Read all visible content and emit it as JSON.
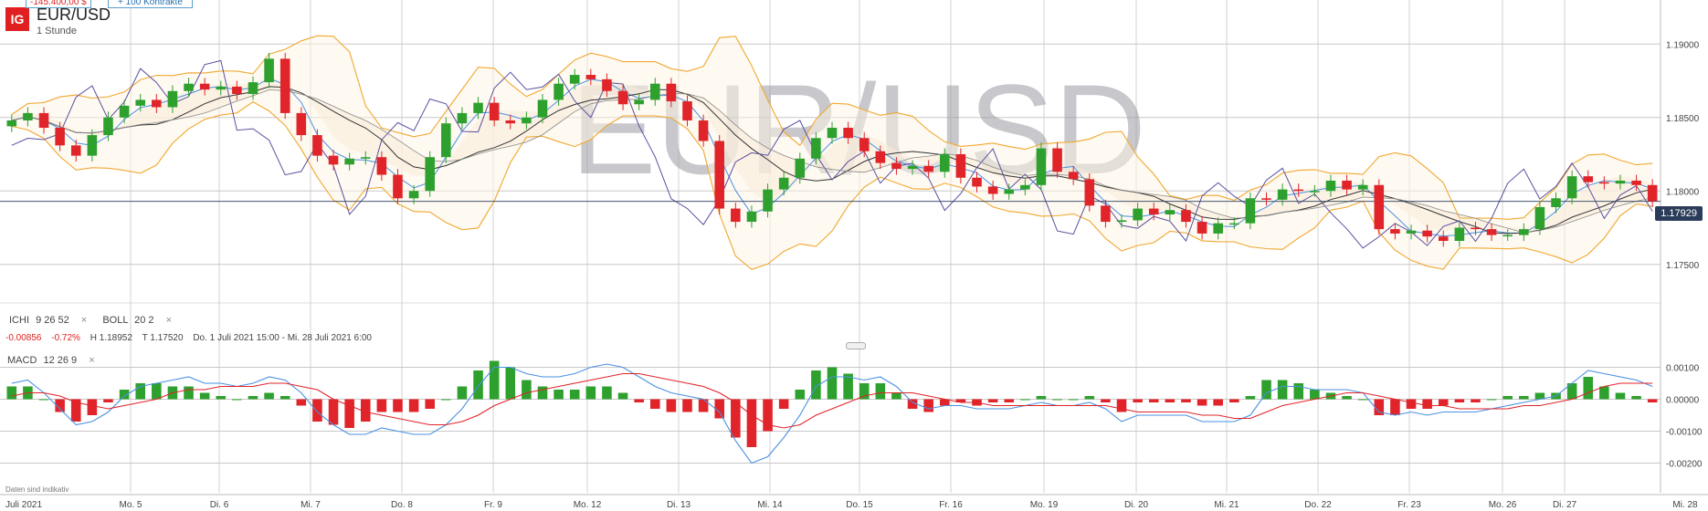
{
  "header": {
    "logo_text": "IG",
    "symbol": "EUR/USD",
    "timeframe": "1 Stunde",
    "watermark": "EUR/USD",
    "position_value": "-145.400,00 $",
    "contracts_label": "+ 100 Kontrakte"
  },
  "indicators": {
    "ichi_label": "ICHI",
    "ichi_params": "9  26  52",
    "boll_label": "BOLL",
    "boll_params": "20  2",
    "macd_label": "MACD",
    "macd_params": "12  26  9",
    "close_glyph": "×"
  },
  "stats": {
    "change": "-0.00856",
    "change_pct": "-0.72%",
    "high": "H 1.18952",
    "low": "T 1.17520",
    "range": "Do. 1 Juli 2021 15:00 - Mi. 28 Juli 2021 6:00"
  },
  "footer": {
    "disclaimer": "Daten sind indikativ"
  },
  "colors": {
    "up": "#2ea02e",
    "down": "#e0242a",
    "boll": "#f0a830",
    "ichi_cloud": "#f5e6d3",
    "ichi_lines": "#5a4fa0",
    "macd_line": "#4a90e2",
    "signal_line": "#e0242a",
    "grid": "#c8c8c8",
    "badge": "#2b3c5a"
  },
  "chart_data": [
    {
      "type": "candlestick",
      "title": "EUR/USD",
      "timeframe": "1 Stunde",
      "last_price": "1.17929",
      "ylim": [
        1.1725,
        1.1925
      ],
      "y_ticks": [
        "1.19000",
        "1.18500",
        "1.18000",
        "1.17500"
      ],
      "x_labels": [
        "Juli 2021",
        "Mo. 5",
        "Di. 6",
        "Mi. 7",
        "Do. 8",
        "Fr. 9",
        "Mo. 12",
        "Di. 13",
        "Mi. 14",
        "Do. 15",
        "Fr. 16",
        "Mo. 19",
        "Di. 20",
        "Mi. 21",
        "Do. 22",
        "Fr. 23",
        "Mo. 26",
        "Di. 27",
        "Mi. 28"
      ],
      "close": [
        1.1848,
        1.1853,
        1.1843,
        1.1831,
        1.1824,
        1.1838,
        1.185,
        1.1858,
        1.1862,
        1.1857,
        1.1868,
        1.1873,
        1.1869,
        1.1871,
        1.1866,
        1.1874,
        1.189,
        1.1853,
        1.1838,
        1.1824,
        1.1818,
        1.1822,
        1.1823,
        1.1811,
        1.1795,
        1.18,
        1.1823,
        1.1846,
        1.1853,
        1.186,
        1.1848,
        1.1846,
        1.185,
        1.1862,
        1.1873,
        1.1879,
        1.1876,
        1.1868,
        1.1859,
        1.1862,
        1.1873,
        1.1861,
        1.1848,
        1.1834,
        1.1788,
        1.1779,
        1.1786,
        1.1801,
        1.1809,
        1.1822,
        1.1836,
        1.1843,
        1.1836,
        1.1827,
        1.1819,
        1.1815,
        1.1817,
        1.1813,
        1.1825,
        1.1809,
        1.1803,
        1.1798,
        1.1801,
        1.1804,
        1.1829,
        1.1813,
        1.1808,
        1.179,
        1.1779,
        1.178,
        1.1788,
        1.1784,
        1.1787,
        1.1779,
        1.1771,
        1.1778,
        1.1778,
        1.1795,
        1.1794,
        1.1801,
        1.18,
        1.18,
        1.1807,
        1.1801,
        1.1804,
        1.1774,
        1.1771,
        1.1773,
        1.1769,
        1.1766,
        1.1775,
        1.1774,
        1.177,
        1.177,
        1.1774,
        1.1789,
        1.1795,
        1.181,
        1.1806,
        1.1805,
        1.1807,
        1.1804,
        1.1793
      ],
      "macd": [
        0.0005,
        0.0006,
        0.0002,
        -0.0003,
        -0.0008,
        -0.0007,
        -0.0004,
        0.0001,
        0.0004,
        0.0005,
        0.0006,
        0.0007,
        0.0005,
        0.0005,
        0.0004,
        0.0005,
        0.0007,
        0.0006,
        0.0002,
        -0.0004,
        -0.0008,
        -0.0011,
        -0.0011,
        -0.0009,
        -0.001,
        -0.0011,
        -0.0011,
        -0.0008,
        -0.0003,
        0.0004,
        0.001,
        0.001,
        0.0008,
        0.0007,
        0.0007,
        0.0008,
        0.001,
        0.0011,
        0.001,
        0.0007,
        0.0004,
        0.0002,
        0.0001,
        0.0,
        -0.0004,
        -0.0013,
        -0.002,
        -0.0018,
        -0.0012,
        -0.0005,
        0.0004,
        0.0007,
        0.0007,
        0.0006,
        0.0007,
        0.0004,
        -0.0001,
        -0.0003,
        -0.0002,
        -0.0002,
        -0.0003,
        -0.0003,
        -0.0003,
        -0.0002,
        -0.0001,
        -0.0002,
        -0.0002,
        -0.0001,
        -0.0003,
        -0.0007,
        -0.0005,
        -0.0005,
        -0.0005,
        -0.0005,
        -0.0007,
        -0.0007,
        -0.0007,
        -0.0005,
        0.0002,
        0.0004,
        0.0004,
        0.0003,
        0.0003,
        0.0003,
        0.0002,
        -0.0004,
        -0.0005,
        -0.0004,
        -0.0005,
        -0.0004,
        -0.0004,
        -0.0004,
        -0.0003,
        -0.0002,
        -0.0001,
        0.0,
        0.0001,
        0.0005,
        0.0009,
        0.0008,
        0.0007,
        0.0006,
        0.0004
      ],
      "signal": [
        0.0001,
        0.0002,
        0.0002,
        0.0001,
        -0.0001,
        -0.0002,
        -0.0003,
        -0.0002,
        -0.0001,
        0.0,
        0.0002,
        0.0003,
        0.0003,
        0.0004,
        0.0004,
        0.0004,
        0.0005,
        0.0005,
        0.0004,
        0.0003,
        0.0,
        -0.0002,
        -0.0004,
        -0.0005,
        -0.0006,
        -0.0007,
        -0.0008,
        -0.0008,
        -0.0007,
        -0.0005,
        -0.0002,
        0.0,
        0.0002,
        0.0003,
        0.0004,
        0.0005,
        0.0006,
        0.0007,
        0.0008,
        0.0008,
        0.0007,
        0.0006,
        0.0005,
        0.0004,
        0.0002,
        -0.0001,
        -0.0005,
        -0.0008,
        -0.0009,
        -0.0008,
        -0.0005,
        -0.0003,
        -0.0001,
        0.0001,
        0.0002,
        0.0002,
        0.0002,
        0.0001,
        0.0,
        -0.0001,
        -0.0001,
        -0.0002,
        -0.0002,
        -0.0002,
        -0.0002,
        -0.0002,
        -0.0002,
        -0.0002,
        -0.0002,
        -0.0003,
        -0.0004,
        -0.0004,
        -0.0004,
        -0.0004,
        -0.0005,
        -0.0005,
        -0.0006,
        -0.0006,
        -0.0004,
        -0.0002,
        -0.0001,
        0.0,
        0.0001,
        0.0002,
        0.0002,
        0.0001,
        0.0,
        -0.0001,
        -0.0002,
        -0.0002,
        -0.0003,
        -0.0003,
        -0.0003,
        -0.0003,
        -0.0002,
        -0.0002,
        -0.0001,
        0.0,
        0.0002,
        0.0004,
        0.0005,
        0.0005,
        0.0005
      ],
      "macd_ylim": [
        -0.0025,
        0.0013
      ],
      "macd_y_ticks": [
        "0.00100",
        "0.00000",
        "-0.00100",
        "-0.00200"
      ]
    }
  ]
}
